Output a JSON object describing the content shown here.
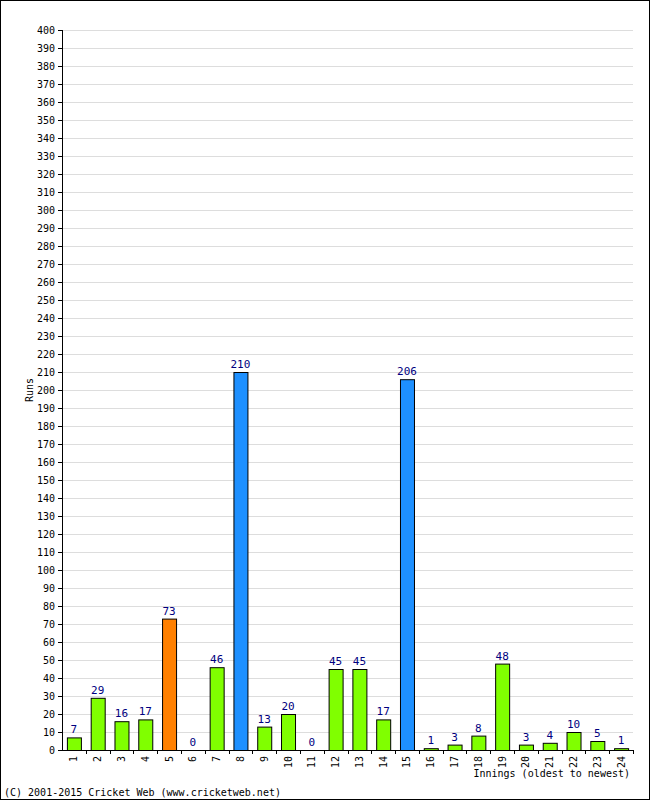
{
  "chart_data": {
    "type": "bar",
    "y_label": "Runs",
    "x_label": "Innings (oldest to newest)",
    "annotations": [
      "(C) 2001-2015 Cricket Web (www.cricketweb.net)"
    ],
    "categories": [
      "1",
      "2",
      "3",
      "4",
      "5",
      "6",
      "7",
      "8",
      "9",
      "10",
      "11",
      "12",
      "13",
      "14",
      "15",
      "16",
      "17",
      "18",
      "19",
      "20",
      "21",
      "22",
      "23",
      "24"
    ],
    "values": [
      7,
      29,
      16,
      17,
      73,
      0,
      46,
      210,
      13,
      20,
      0,
      45,
      45,
      17,
      206,
      1,
      3,
      8,
      48,
      3,
      4,
      10,
      5,
      1
    ],
    "colors": [
      "#80ff00",
      "#80ff00",
      "#80ff00",
      "#80ff00",
      "#ff8000",
      "#80ff00",
      "#80ff00",
      "#1e90ff",
      "#80ff00",
      "#80ff00",
      "#80ff00",
      "#80ff00",
      "#80ff00",
      "#80ff00",
      "#1e90ff",
      "#80ff00",
      "#80ff00",
      "#80ff00",
      "#80ff00",
      "#80ff00",
      "#80ff00",
      "#80ff00",
      "#80ff00",
      "#80ff00"
    ],
    "ylim": [
      0,
      400
    ],
    "yticks": [
      0,
      10,
      20,
      30,
      40,
      50,
      60,
      70,
      80,
      90,
      100,
      110,
      120,
      130,
      140,
      150,
      160,
      170,
      180,
      190,
      200,
      210,
      220,
      230,
      240,
      250,
      260,
      270,
      280,
      290,
      300,
      310,
      320,
      330,
      340,
      350,
      360,
      370,
      380,
      390,
      400
    ],
    "grid": true,
    "data_labels": true
  }
}
